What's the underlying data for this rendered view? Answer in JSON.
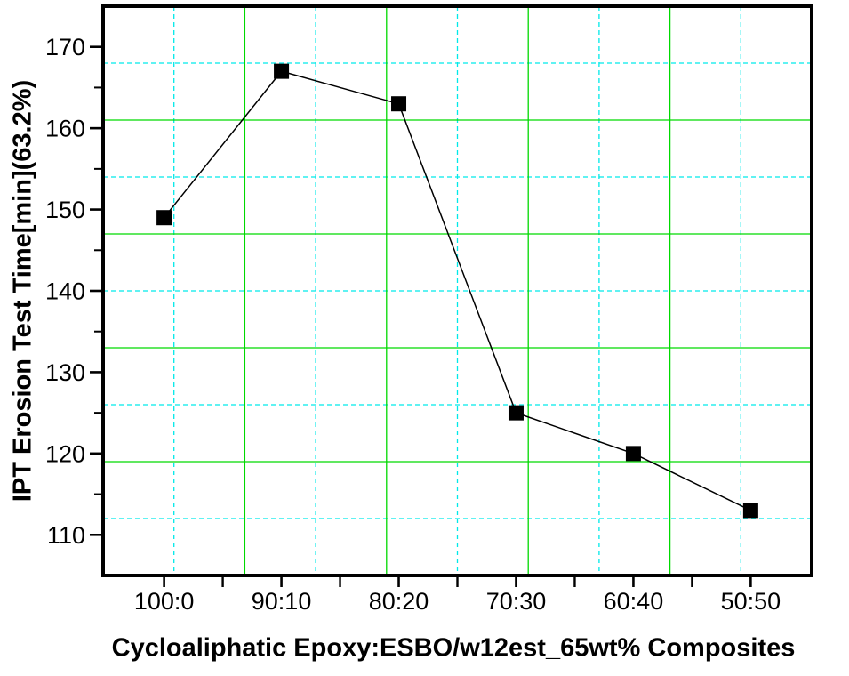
{
  "chart_data": {
    "type": "line",
    "title": "",
    "categories": [
      "100:0",
      "90:10",
      "80:20",
      "70:30",
      "60:40",
      "50:50"
    ],
    "values": [
      149,
      167,
      163,
      125,
      120,
      113
    ],
    "series_name": "IPT Erosion Test Time",
    "xlabel": "Cycloaliphatic Epoxy:ESBO/w12est_65wt% Composites",
    "ylabel": "IPT Erosion Test Time[min](63.2%)",
    "ylim": [
      105,
      175
    ],
    "y_major_ticks": [
      110,
      120,
      130,
      140,
      150,
      160,
      170
    ],
    "y_minor_ticks": [
      115,
      125,
      135,
      145,
      155,
      165
    ],
    "x_edge_padding_categories": 0.52,
    "grid": {
      "on": true,
      "major_style": "solid",
      "minor_style": "dashed",
      "major_line_color": "#00d900",
      "minor_line_color": "#00e9e9",
      "major_fracs": [
        0.2,
        0.4,
        0.6,
        0.8
      ],
      "minor_fracs": [
        0.1,
        0.3,
        0.5,
        0.7,
        0.9
      ]
    },
    "marker": {
      "shape": "square",
      "color": "#000000",
      "size": 17
    },
    "line_color": "#000000",
    "axis_color": "#000000",
    "background": "#ffffff",
    "legend": {
      "visible": false
    }
  }
}
